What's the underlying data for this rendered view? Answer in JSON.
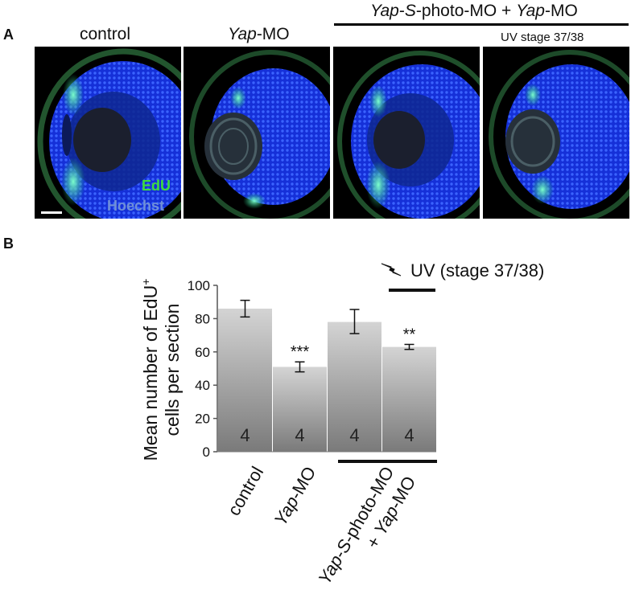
{
  "panel_a": {
    "letter": "A",
    "columns": [
      {
        "label": "control"
      },
      {
        "label_italic": "Yap",
        "label_rest": "-MO"
      }
    ],
    "combo_header": {
      "part1_italic": "Yap",
      "part2": "-",
      "part3_italic": "S",
      "part4": "-photo-MO + ",
      "part5_italic": "Yap",
      "part6": "-MO"
    },
    "uv_label": "UV stage 37/38",
    "stain_edu": "EdU",
    "stain_hoechst": "Hoechst",
    "colors": {
      "edu": "#3ddc3d",
      "hoechst": "#6f8fd8",
      "nuclei": "#1f3cff",
      "background": "#000000"
    }
  },
  "panel_b": {
    "letter": "B",
    "uv_annotation": "UV (stage 37/38)",
    "lightning": "lightning-bolt-icon",
    "ylabel_line1": "Mean number of EdU",
    "ylabel_sup": "+",
    "ylabel_line2": "cells per section",
    "xlabels": {
      "control": "control",
      "yap_italic": "Yap",
      "yap_rest": "-MO",
      "combo_line1_italic1": "Yap",
      "combo_line1_dash": "-",
      "combo_line1_italic2": "S",
      "combo_line1_rest": "-photo-MO",
      "combo_line2_plus": "+ ",
      "combo_line2_italic": "Yap",
      "combo_line2_rest": "-MO"
    }
  },
  "chart_data": {
    "type": "bar",
    "categories": [
      "control",
      "Yap-MO",
      "Yap-S-photo-MO + Yap-MO",
      "Yap-S-photo-MO + Yap-MO, UV (stage 37/38)"
    ],
    "values": [
      86,
      51,
      78,
      63
    ],
    "error_low": [
      81,
      48,
      71,
      61.5
    ],
    "error_high": [
      91,
      54,
      85.5,
      64.5
    ],
    "n": [
      "4",
      "4",
      "4",
      "4"
    ],
    "significance": [
      "",
      "***",
      "",
      "**"
    ],
    "ylim": [
      0,
      100
    ],
    "yticks": [
      0,
      20,
      40,
      60,
      80,
      100
    ],
    "ylabel": "Mean number of EdU+ cells per section",
    "xlabel": "",
    "grid": false
  }
}
